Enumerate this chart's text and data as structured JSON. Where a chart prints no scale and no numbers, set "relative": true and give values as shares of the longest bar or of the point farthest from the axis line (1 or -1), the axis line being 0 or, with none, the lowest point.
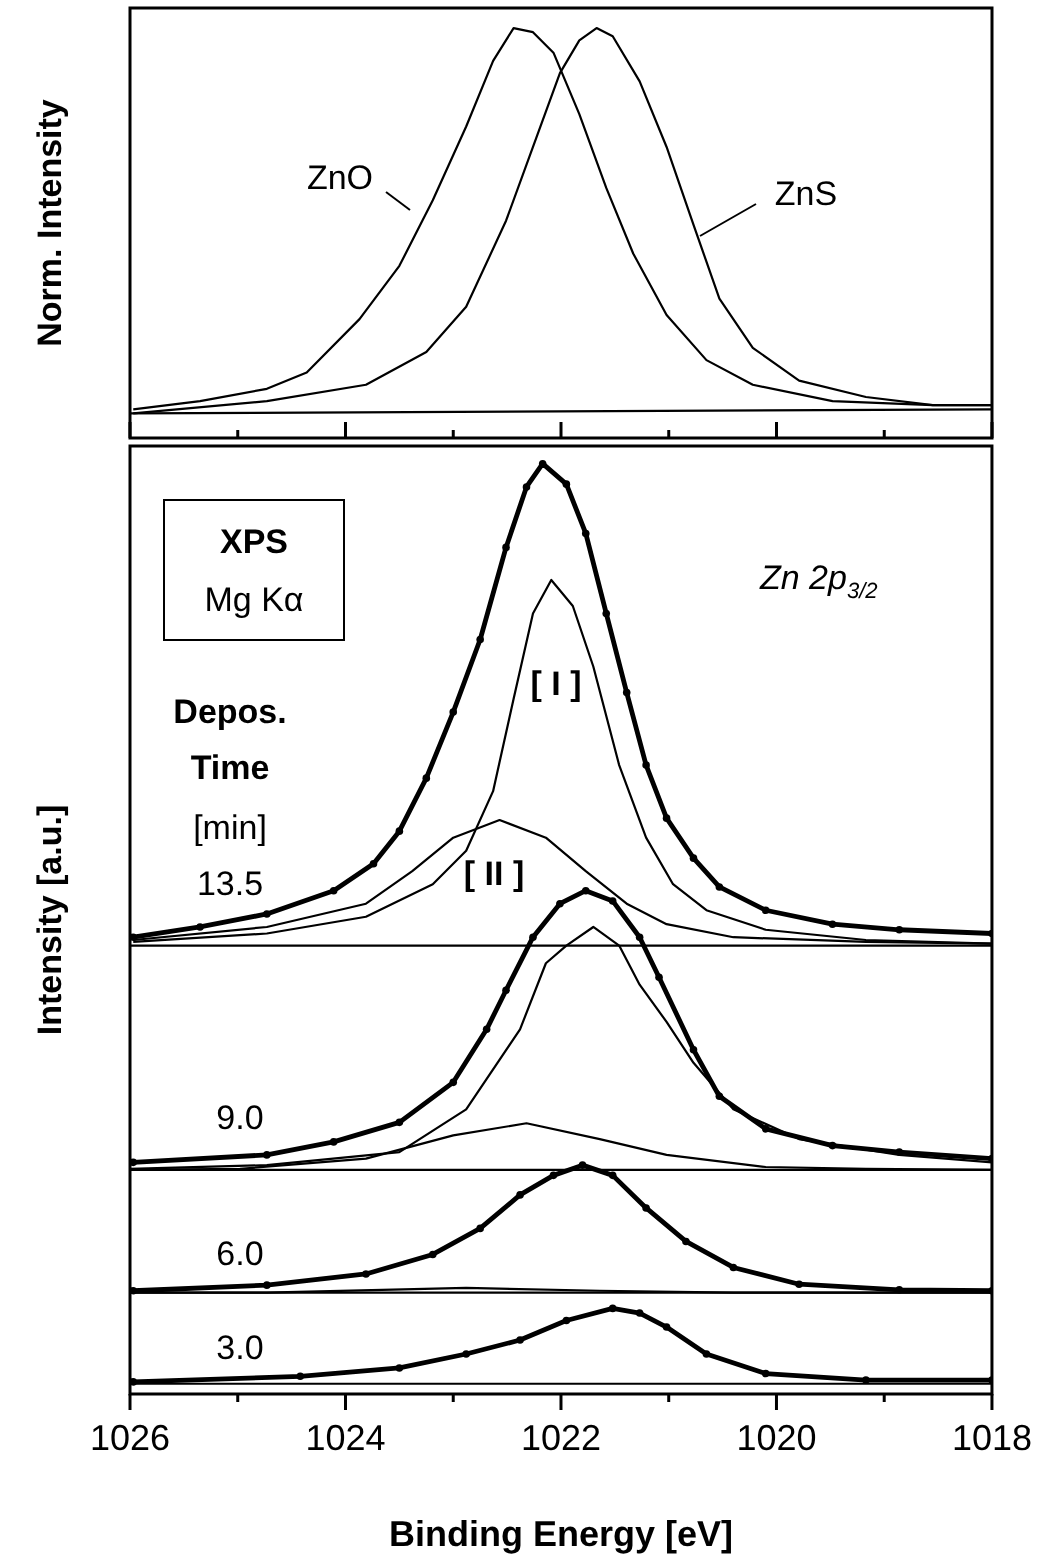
{
  "chart_data": [
    {
      "type": "line",
      "ylabel": "Norm. Intensity",
      "relative": true,
      "tick_labels": false,
      "xlim": [
        1026,
        1018
      ],
      "xticks": [
        1026,
        {
          "value": 1025,
          "label": null
        },
        1024,
        {
          "value": 1023,
          "label": null
        },
        1022,
        {
          "value": 1021,
          "label": null
        },
        1020,
        {
          "value": 1019,
          "label": null
        },
        1018
      ],
      "series": [
        {
          "name": "ZnO",
          "color": "#000000",
          "x": [
            1025.97,
            1025.35,
            1024.73,
            1024.36,
            1023.87,
            1023.5,
            1023.19,
            1022.88,
            1022.63,
            1022.44,
            1022.26,
            1022.07,
            1021.83,
            1021.58,
            1021.33,
            1021.02,
            1020.65,
            1020.22,
            1019.48,
            1018.55,
            1018.0
          ],
          "values": [
            0.07,
            0.09,
            0.12,
            0.16,
            0.29,
            0.42,
            0.58,
            0.76,
            0.92,
            1.0,
            0.99,
            0.94,
            0.79,
            0.61,
            0.45,
            0.3,
            0.19,
            0.13,
            0.09,
            0.08,
            0.08
          ]
        },
        {
          "name": "ZnS",
          "color": "#000000",
          "x": [
            1025.97,
            1024.73,
            1023.81,
            1023.25,
            1022.88,
            1022.51,
            1022.26,
            1022.01,
            1021.83,
            1021.67,
            1021.52,
            1021.27,
            1021.02,
            1020.77,
            1020.53,
            1020.22,
            1019.79,
            1019.17,
            1018.55,
            1018.0
          ],
          "values": [
            0.06,
            0.09,
            0.13,
            0.21,
            0.32,
            0.53,
            0.71,
            0.89,
            0.97,
            1.0,
            0.98,
            0.87,
            0.71,
            0.52,
            0.34,
            0.22,
            0.14,
            0.1,
            0.08,
            0.08
          ]
        },
        {
          "color": "#000000",
          "x": [
            1026,
            1018
          ],
          "values": [
            0.06,
            0.07
          ]
        }
      ]
    },
    {
      "type": "line",
      "ylabel": "Intensity [a.u.]",
      "xlabel": "Binding Energy [eV]",
      "relative": true,
      "tick_labels": "x",
      "xlim": [
        1026,
        1018
      ],
      "xticks": [
        1026,
        {
          "value": 1025,
          "label": null
        },
        1024,
        {
          "value": 1023,
          "label": null
        },
        1022,
        {
          "value": 1021,
          "label": null
        },
        1020,
        {
          "value": 1019,
          "label": null
        },
        1018
      ],
      "annotations": [
        "XPS",
        "Mg Kα",
        "Zn 2p$_{3/2}$",
        "Depos.",
        "Time",
        "[min]",
        "[ I ]",
        "[ II ]",
        "13.5",
        "9.0",
        "6.0",
        "3.0"
      ],
      "series": [
        {
          "color": "#000000",
          "marker": "circle",
          "x": [
            1025.97,
            1025.35,
            1024.73,
            1024.11,
            1023.74,
            1023.5,
            1023.25,
            1023.0,
            1022.75,
            1022.51,
            1022.32,
            1022.17,
            1021.95,
            1021.77,
            1021.58,
            1021.39,
            1021.21,
            1021.02,
            1020.77,
            1020.53,
            1020.1,
            1019.48,
            1018.86,
            1018.0
          ],
          "values": [
            0.491,
            0.502,
            0.516,
            0.541,
            0.57,
            0.605,
            0.662,
            0.733,
            0.811,
            0.91,
            0.975,
            1.0,
            0.978,
            0.925,
            0.839,
            0.754,
            0.676,
            0.619,
            0.576,
            0.545,
            0.52,
            0.505,
            0.499,
            0.495
          ]
        },
        {
          "color": "#000000",
          "x": [
            1025.97,
            1024.73,
            1023.81,
            1023.19,
            1022.88,
            1022.63,
            1022.44,
            1022.26,
            1022.09,
            1021.89,
            1021.7,
            1021.46,
            1021.21,
            1020.96,
            1020.65,
            1020.1,
            1019.17,
            1018.0
          ],
          "values": [
            0.486,
            0.495,
            0.513,
            0.548,
            0.584,
            0.648,
            0.747,
            0.839,
            0.875,
            0.847,
            0.782,
            0.676,
            0.598,
            0.548,
            0.52,
            0.499,
            0.488,
            0.484
          ]
        },
        {
          "color": "#000000",
          "x": [
            1025.97,
            1024.73,
            1023.81,
            1023.38,
            1023.0,
            1022.57,
            1022.14,
            1021.77,
            1021.39,
            1021.02,
            1020.4,
            1019.17,
            1018.0
          ],
          "values": [
            0.488,
            0.502,
            0.527,
            0.562,
            0.598,
            0.617,
            0.598,
            0.562,
            0.527,
            0.505,
            0.491,
            0.486,
            0.484
          ]
        },
        {
          "color": "#000000",
          "x": [
            1026,
            1018
          ],
          "values": [
            0.482,
            0.482
          ]
        },
        {
          "color": "#000000",
          "marker": "circle",
          "x": [
            1025.97,
            1024.73,
            1024.11,
            1023.5,
            1023.0,
            1022.69,
            1022.51,
            1022.26,
            1022.01,
            1021.77,
            1021.52,
            1021.27,
            1021.09,
            1020.77,
            1020.53,
            1020.1,
            1019.48,
            1018.86,
            1018.0
          ],
          "values": [
            0.249,
            0.257,
            0.271,
            0.292,
            0.335,
            0.392,
            0.434,
            0.491,
            0.527,
            0.541,
            0.53,
            0.491,
            0.448,
            0.37,
            0.32,
            0.285,
            0.267,
            0.26,
            0.253
          ]
        },
        {
          "color": "#000000",
          "x": [
            1026,
            1024.73,
            1023.5,
            1022.88,
            1022.38,
            1022.14,
            1021.95,
            1021.7,
            1021.46,
            1021.27,
            1021.02,
            1020.77,
            1020.4,
            1019.79,
            1018.86,
            1018.0
          ],
          "values": [
            0.242,
            0.246,
            0.26,
            0.306,
            0.392,
            0.463,
            0.482,
            0.502,
            0.482,
            0.44,
            0.4,
            0.356,
            0.306,
            0.274,
            0.257,
            0.249
          ]
        },
        {
          "color": "#000000",
          "x": [
            1026,
            1024.98,
            1023.81,
            1023.0,
            1022.32,
            1021.64,
            1021.02,
            1020.1,
            1019.17,
            1018.0
          ],
          "values": [
            0.241,
            0.242,
            0.253,
            0.278,
            0.291,
            0.274,
            0.257,
            0.244,
            0.242,
            0.241
          ]
        },
        {
          "color": "#000000",
          "x": [
            1026,
            1018
          ],
          "values": [
            0.241,
            0.241
          ]
        },
        {
          "color": "#000000",
          "marker": "circle",
          "x": [
            1025.97,
            1024.73,
            1023.81,
            1023.19,
            1022.75,
            1022.38,
            1022.07,
            1021.8,
            1021.52,
            1021.21,
            1020.84,
            1020.4,
            1019.79,
            1018.86,
            1018.0
          ],
          "values": [
            0.111,
            0.117,
            0.129,
            0.15,
            0.178,
            0.214,
            0.235,
            0.246,
            0.235,
            0.2,
            0.164,
            0.136,
            0.118,
            0.112,
            0.111
          ]
        },
        {
          "color": "#000000",
          "x": [
            1026,
            1024.73,
            1022.88,
            1021.64,
            1020.4,
            1018.0
          ],
          "values": [
            0.109,
            0.109,
            0.114,
            0.111,
            0.109,
            0.109
          ]
        },
        {
          "color": "#000000",
          "x": [
            1026,
            1018
          ],
          "values": [
            0.109,
            0.109
          ]
        },
        {
          "color": "#000000",
          "marker": "circle",
          "x": [
            1025.97,
            1024.42,
            1023.5,
            1022.88,
            1022.38,
            1021.95,
            1021.52,
            1021.27,
            1021.02,
            1020.65,
            1020.1,
            1019.17,
            1018.0
          ],
          "values": [
            0.013,
            0.019,
            0.028,
            0.043,
            0.058,
            0.079,
            0.092,
            0.087,
            0.072,
            0.043,
            0.022,
            0.015,
            0.015
          ]
        },
        {
          "color": "#000000",
          "x": [
            1026,
            1018
          ],
          "values": [
            0.011,
            0.011
          ]
        }
      ]
    }
  ]
}
